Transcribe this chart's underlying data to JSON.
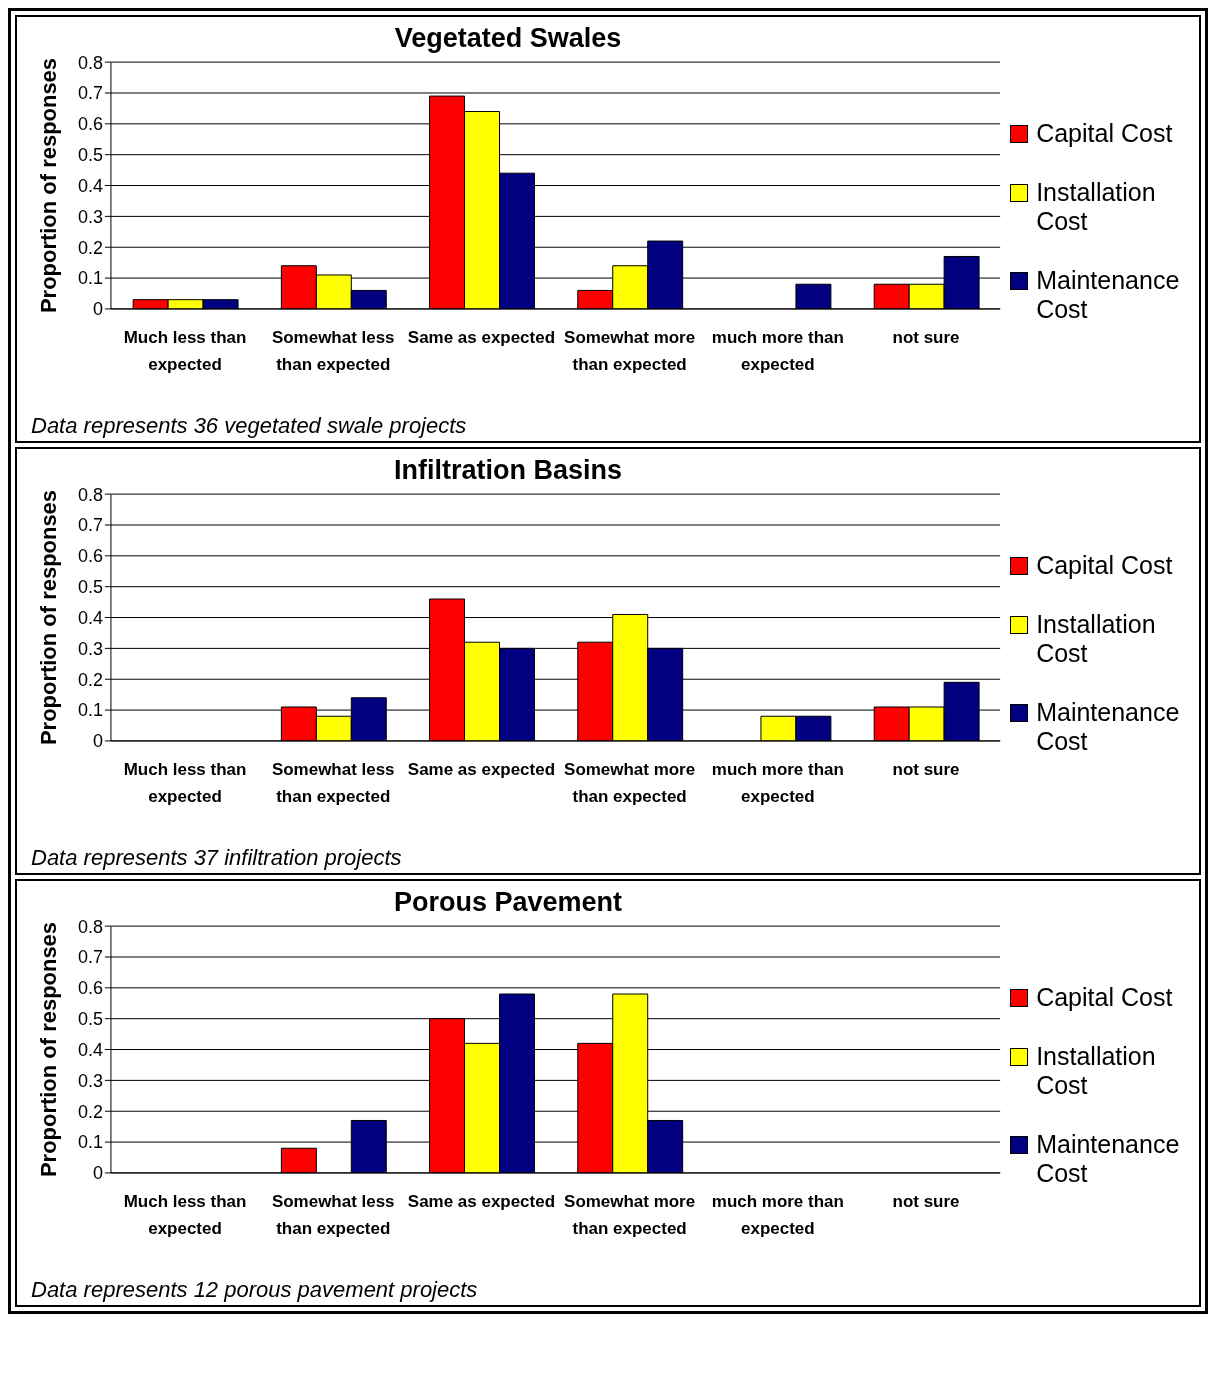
{
  "chart_data": [
    {
      "type": "bar",
      "title": "Vegetated Swales",
      "ylabel": "Proportion of responses",
      "categories": [
        "Much less than expected",
        "Somewhat less than expected",
        "Same as expected",
        "Somewhat more than expected",
        "much more than expected",
        "not sure"
      ],
      "series": [
        {
          "name": "Capital Cost",
          "color": "#ff0000",
          "values": [
            0.03,
            0.14,
            0.69,
            0.06,
            0,
            0.08
          ]
        },
        {
          "name": "Installation Cost",
          "color": "#ffff00",
          "values": [
            0.03,
            0.11,
            0.64,
            0.14,
            0,
            0.08
          ]
        },
        {
          "name": "Maintenance Cost",
          "color": "#000080",
          "values": [
            0.03,
            0.06,
            0.44,
            0.22,
            0.08,
            0.17
          ]
        }
      ],
      "ylim": [
        0,
        0.8
      ],
      "yticks": [
        0,
        0.1,
        0.2,
        0.3,
        0.4,
        0.5,
        0.6,
        0.7,
        0.8
      ],
      "grid": "y",
      "legend": "right",
      "annotations": [
        "Data represents 36 vegetated swale projects"
      ]
    },
    {
      "type": "bar",
      "title": "Infiltration Basins",
      "ylabel": "Proportion of responses",
      "categories": [
        "Much less than expected",
        "Somewhat less than expected",
        "Same as expected",
        "Somewhat more than expected",
        "much more than expected",
        "not sure"
      ],
      "series": [
        {
          "name": "Capital Cost",
          "color": "#ff0000",
          "values": [
            0,
            0.11,
            0.46,
            0.32,
            0,
            0.11
          ]
        },
        {
          "name": "Installation Cost",
          "color": "#ffff00",
          "values": [
            0,
            0.08,
            0.32,
            0.41,
            0.08,
            0.11
          ]
        },
        {
          "name": "Maintenance Cost",
          "color": "#000080",
          "values": [
            0,
            0.14,
            0.3,
            0.3,
            0.08,
            0.19
          ]
        }
      ],
      "ylim": [
        0,
        0.8
      ],
      "yticks": [
        0,
        0.1,
        0.2,
        0.3,
        0.4,
        0.5,
        0.6,
        0.7,
        0.8
      ],
      "grid": "y",
      "legend": "right",
      "annotations": [
        "Data represents 37 infiltration projects"
      ]
    },
    {
      "type": "bar",
      "title": "Porous Pavement",
      "ylabel": "Proportion of responses",
      "categories": [
        "Much less than expected",
        "Somewhat less than expected",
        "Same as expected",
        "Somewhat more than expected",
        "much more than expected",
        "not sure"
      ],
      "series": [
        {
          "name": "Capital Cost",
          "color": "#ff0000",
          "values": [
            0,
            0.08,
            0.5,
            0.42,
            0,
            0
          ]
        },
        {
          "name": "Installation Cost",
          "color": "#ffff00",
          "values": [
            0,
            0,
            0.42,
            0.58,
            0,
            0
          ]
        },
        {
          "name": "Maintenance Cost",
          "color": "#000080",
          "values": [
            0,
            0.17,
            0.58,
            0.17,
            0,
            0
          ]
        }
      ],
      "ylim": [
        0,
        0.8
      ],
      "yticks": [
        0,
        0.1,
        0.2,
        0.3,
        0.4,
        0.5,
        0.6,
        0.7,
        0.8
      ],
      "grid": "y",
      "legend": "right",
      "annotations": [
        "Data represents 12 porous pavement projects"
      ]
    }
  ]
}
